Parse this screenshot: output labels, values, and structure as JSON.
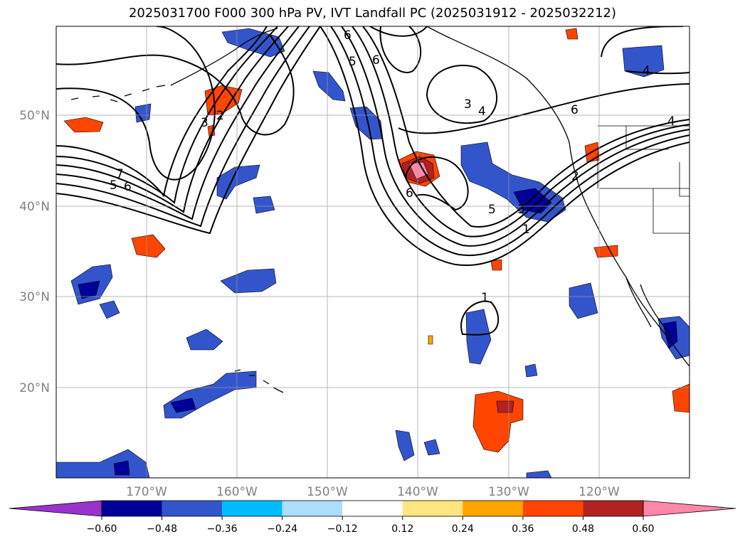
{
  "title": "2025031700 F000 300 hPa PV, IVT Landfall PC (2025031912 - 2025032212)",
  "map": {
    "lon_labels": [
      "170°W",
      "160°W",
      "150°W",
      "140°W",
      "130°W",
      "120°W"
    ],
    "lat_labels": [
      "50°N",
      "40°N",
      "30°N",
      "20°N"
    ],
    "contour_labels": [
      "6",
      "5",
      "6",
      "3",
      "4",
      "6",
      "4",
      "4",
      "7",
      "6",
      "5",
      "3",
      "2",
      "6",
      "5",
      "3",
      "1",
      "2",
      "1"
    ]
  },
  "colorbar": {
    "ticks": [
      "−0.60",
      "−0.48",
      "−0.36",
      "−0.24",
      "−0.12",
      "0.12",
      "0.24",
      "0.36",
      "0.48",
      "0.60"
    ],
    "colors": [
      "#9933cc",
      "#000099",
      "#3355cc",
      "#00bbff",
      "#aaddff",
      "#ffffff",
      "#ffe680",
      "#ffa500",
      "#ff4500",
      "#b22222",
      "#ff88aa"
    ]
  }
}
